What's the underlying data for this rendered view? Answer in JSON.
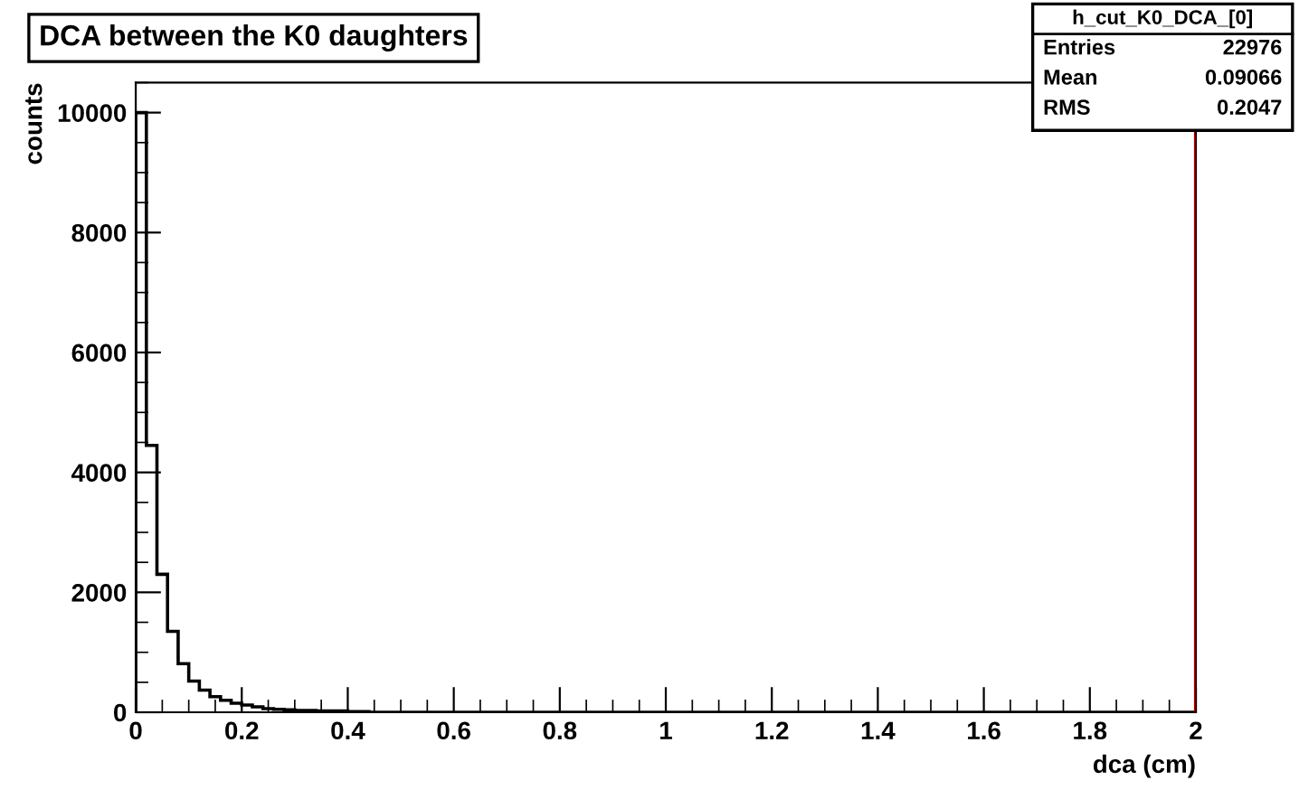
{
  "chart_data": {
    "type": "histogram",
    "title": "DCA between the K0 daughters",
    "xlabel": "dca (cm)",
    "ylabel": "counts",
    "bins": [
      0,
      0.02,
      0.04,
      0.06,
      0.08,
      0.1,
      0.12,
      0.14,
      0.16,
      0.18,
      0.2,
      0.22,
      0.24,
      0.26,
      0.28,
      0.3,
      0.32,
      0.34,
      0.36,
      0.38,
      0.4,
      0.42,
      0.44,
      0.46,
      0.48,
      0.5,
      0.52,
      0.54,
      0.56,
      0.58,
      0.6,
      0.62,
      0.64,
      0.66,
      0.68,
      0.7,
      0.72,
      0.74,
      0.76,
      0.78,
      0.8,
      0.82,
      0.84,
      0.86,
      0.88,
      0.9,
      0.92,
      0.94,
      0.96,
      0.98,
      1,
      1.02,
      1.04,
      1.06,
      1.08,
      1.1,
      1.12,
      1.14,
      1.16,
      1.18,
      1.2,
      1.22,
      1.24,
      1.26,
      1.28,
      1.3,
      1.32,
      1.34,
      1.36,
      1.38,
      1.4,
      1.42,
      1.44,
      1.46,
      1.48,
      1.5,
      1.52,
      1.54,
      1.56,
      1.58,
      1.6,
      1.62,
      1.64,
      1.66,
      1.68,
      1.7,
      1.72,
      1.74,
      1.76,
      1.78,
      1.8,
      1.82,
      1.84,
      1.86,
      1.88,
      1.9,
      1.92,
      1.94,
      1.96,
      1.98,
      2
    ],
    "values": [
      10000,
      4450,
      2300,
      1350,
      810,
      520,
      370,
      260,
      200,
      150,
      120,
      90,
      60,
      50,
      40,
      30,
      30,
      20,
      20,
      20,
      10,
      10,
      0,
      0,
      0,
      0,
      0,
      0,
      0,
      0,
      0,
      0,
      0,
      0,
      0,
      0,
      0,
      0,
      0,
      0,
      0,
      0,
      0,
      0,
      0,
      0,
      0,
      0,
      0,
      0,
      0,
      0,
      0,
      0,
      0,
      0,
      0,
      0,
      0,
      0,
      0,
      0,
      0,
      0,
      0,
      0,
      0,
      0,
      0,
      0,
      0,
      0,
      0,
      0,
      0,
      0,
      0,
      0,
      0,
      0,
      0,
      0,
      0,
      0,
      0,
      0,
      0,
      0,
      0,
      0,
      0,
      0,
      0,
      0,
      0,
      0,
      0,
      0,
      0,
      0
    ],
    "color": "#000000",
    "xlim": [
      0,
      2
    ],
    "ylim": [
      0,
      10500
    ],
    "xticks": [
      0,
      0.2,
      0.4,
      0.6,
      0.8,
      1,
      1.2,
      1.4,
      1.6,
      1.8,
      2
    ],
    "yticks": [
      0,
      2000,
      4000,
      6000,
      8000,
      10000
    ],
    "ref_lines": [
      {
        "axis": "x",
        "value": 2,
        "color": "#cc0000"
      }
    ],
    "grid": false,
    "annotations": [
      "h_cut_K0_DCA_[0]",
      "Entries",
      "22976",
      "Mean",
      "0.09066",
      "RMS",
      "0.2047"
    ]
  }
}
